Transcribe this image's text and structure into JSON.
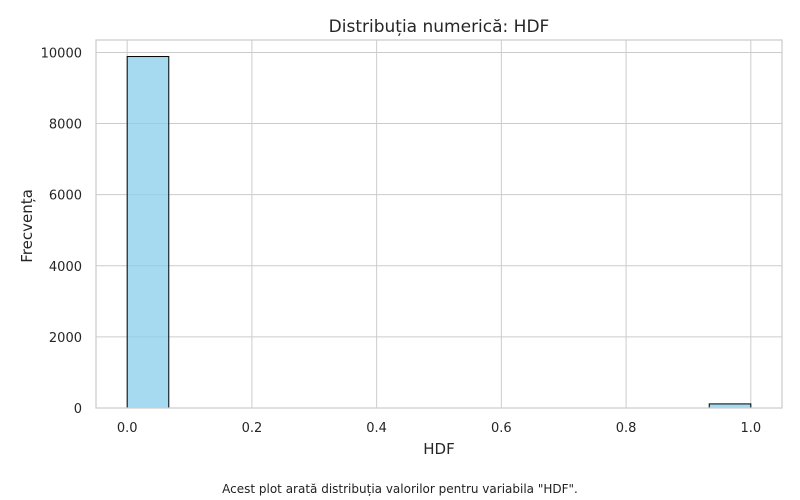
{
  "chart_data": {
    "type": "bar",
    "title": "Distribuția numerică: HDF",
    "xlabel": "HDF",
    "ylabel": "Frecvența",
    "xlim": [
      -0.05,
      1.05
    ],
    "ylim": [
      0,
      10350
    ],
    "xticks": [
      "0.0",
      "0.2",
      "0.4",
      "0.6",
      "0.8",
      "1.0"
    ],
    "yticks": [
      "0",
      "2000",
      "4000",
      "6000",
      "8000",
      "10000"
    ],
    "bins": [
      {
        "x0": 0.0,
        "x1": 0.0667,
        "count": 9885
      },
      {
        "x0": 0.9333,
        "x1": 1.0,
        "count": 115
      }
    ],
    "grid": true,
    "bar_color": "#87CEEB",
    "edge_color": "#000000"
  },
  "caption": "Acest plot arată distribuția valorilor pentru variabila \"HDF\"."
}
